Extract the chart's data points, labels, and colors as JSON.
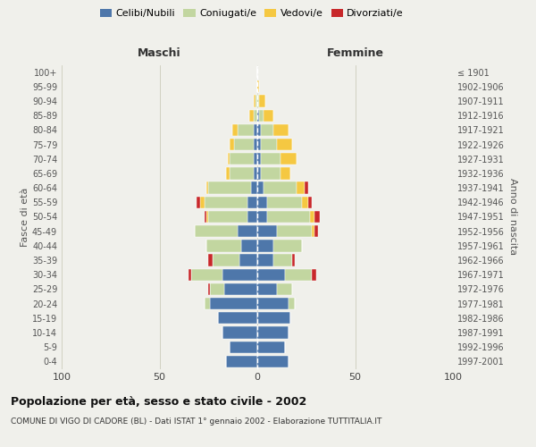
{
  "age_groups": [
    "0-4",
    "5-9",
    "10-14",
    "15-19",
    "20-24",
    "25-29",
    "30-34",
    "35-39",
    "40-44",
    "45-49",
    "50-54",
    "55-59",
    "60-64",
    "65-69",
    "70-74",
    "75-79",
    "80-84",
    "85-89",
    "90-94",
    "95-99",
    "100+"
  ],
  "years_labels": [
    "1997-2001",
    "1992-1996",
    "1987-1991",
    "1982-1986",
    "1977-1981",
    "1972-1976",
    "1967-1971",
    "1962-1966",
    "1957-1961",
    "1952-1956",
    "1947-1951",
    "1942-1946",
    "1937-1941",
    "1932-1936",
    "1927-1931",
    "1922-1926",
    "1917-1921",
    "1912-1916",
    "1907-1911",
    "1902-1906",
    "≤ 1901"
  ],
  "maschi": {
    "celibi": [
      16,
      14,
      18,
      20,
      24,
      17,
      18,
      9,
      8,
      10,
      5,
      5,
      3,
      2,
      2,
      2,
      2,
      0,
      0,
      0,
      0
    ],
    "coniugati": [
      0,
      0,
      0,
      0,
      3,
      7,
      16,
      14,
      18,
      22,
      20,
      22,
      22,
      12,
      12,
      10,
      8,
      2,
      1,
      0,
      0
    ],
    "vedovi": [
      0,
      0,
      0,
      0,
      0,
      0,
      0,
      0,
      0,
      0,
      1,
      2,
      1,
      2,
      1,
      2,
      3,
      2,
      1,
      0,
      0
    ],
    "divorziati": [
      0,
      0,
      0,
      0,
      0,
      1,
      1,
      2,
      0,
      0,
      1,
      2,
      0,
      0,
      0,
      0,
      0,
      0,
      0,
      0,
      0
    ]
  },
  "femmine": {
    "nubili": [
      16,
      14,
      16,
      17,
      16,
      10,
      14,
      8,
      8,
      10,
      5,
      5,
      3,
      2,
      2,
      2,
      2,
      1,
      0,
      0,
      0
    ],
    "coniugate": [
      0,
      0,
      0,
      0,
      3,
      8,
      14,
      10,
      15,
      18,
      22,
      18,
      17,
      10,
      10,
      8,
      6,
      2,
      1,
      0,
      0
    ],
    "vedove": [
      0,
      0,
      0,
      0,
      0,
      0,
      0,
      0,
      0,
      1,
      2,
      3,
      4,
      5,
      8,
      8,
      8,
      5,
      3,
      1,
      0
    ],
    "divorziate": [
      0,
      0,
      0,
      0,
      0,
      0,
      2,
      1,
      0,
      2,
      3,
      2,
      2,
      0,
      0,
      0,
      0,
      0,
      0,
      0,
      0
    ]
  },
  "colors": {
    "celibi": "#4e77aa",
    "coniugati": "#c2d6a0",
    "vedovi": "#f5c842",
    "divorziati": "#c8282a"
  },
  "xlim": 100,
  "title": "Popolazione per età, sesso e stato civile - 2002",
  "subtitle": "COMUNE DI VIGO DI CADORE (BL) - Dati ISTAT 1° gennaio 2002 - Elaborazione TUTTITALIA.IT",
  "ylabel": "Fasce di età",
  "right_label": "Anno di nascita",
  "xlabel_maschi": "Maschi",
  "xlabel_femmine": "Femmine",
  "background_color": "#f0f0eb",
  "grid_color": "#ddddcc",
  "bar_edge_color": "white"
}
